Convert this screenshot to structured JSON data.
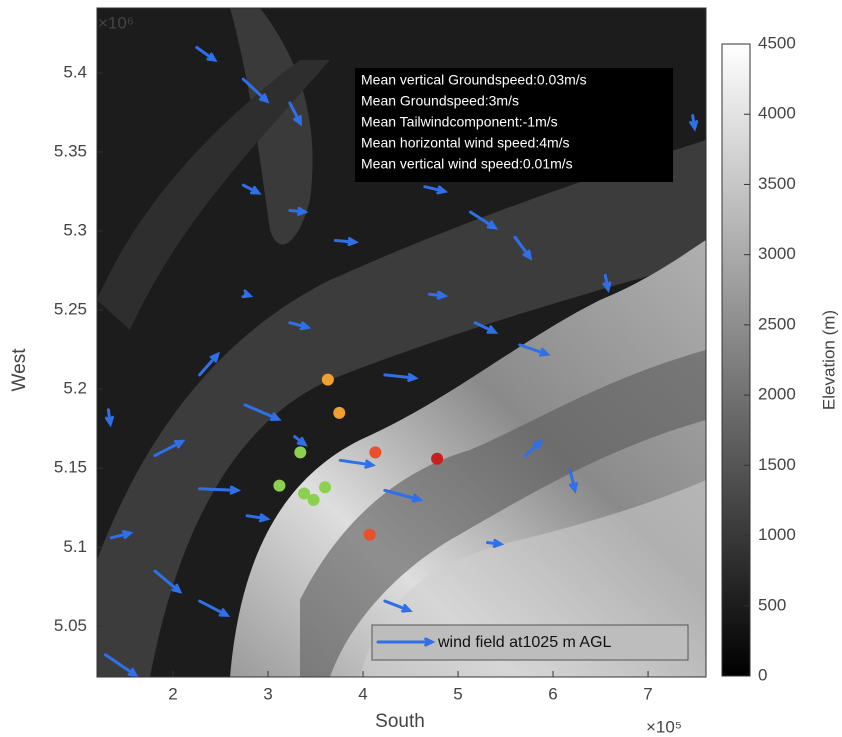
{
  "chart_data": {
    "type": "quiver",
    "xlabel": "South",
    "ylabel": "West",
    "x_multiplier": "×10⁵",
    "y_multiplier": "×10⁶",
    "xlim": [
      1.2,
      7.61
    ],
    "ylim": [
      5.018,
      5.441
    ],
    "xticks": [
      2,
      3,
      4,
      5,
      6,
      7
    ],
    "yticks": [
      5.05,
      5.1,
      5.15,
      5.2,
      5.25,
      5.3,
      5.35,
      5.4
    ],
    "annotations": [
      "Mean vertical Groundspeed:0.03m/s",
      "Mean Groundspeed:3m/s",
      "Mean Tailwindcomponent:-1m/s",
      "Mean horizontal wind speed:4m/s",
      "Mean vertical wind speed:0.01m/s"
    ],
    "legend_position": "lower right",
    "quiver": {
      "name": "wind field at1025 m AGL",
      "color": "#2f6fe8",
      "x": [
        2.25,
        2.74,
        3.23,
        2.74,
        3.23,
        3.71,
        2.76,
        3.23,
        2.28,
        1.81,
        1.32,
        2.76,
        3.28,
        3.76,
        4.23,
        4.23,
        2.28,
        2.78,
        1.81,
        2.28,
        1.29,
        1.35,
        4.65,
        5.13,
        5.6,
        4.7,
        5.18,
        5.65,
        5.71,
        6.18,
        5.31,
        4.23,
        6.55,
        7.47
      ],
      "y": [
        5.416,
        5.396,
        5.381,
        5.329,
        5.313,
        5.294,
        5.26,
        5.242,
        5.209,
        5.158,
        5.187,
        5.19,
        5.17,
        5.155,
        5.209,
        5.136,
        5.137,
        5.12,
        5.085,
        5.066,
        5.032,
        5.106,
        5.328,
        5.312,
        5.296,
        5.26,
        5.242,
        5.228,
        5.158,
        5.149,
        5.103,
        5.066,
        5.272,
        5.373
      ],
      "u": [
        0.19,
        0.25,
        0.11,
        0.16,
        0.16,
        0.21,
        0.05,
        0.19,
        0.19,
        0.29,
        0.02,
        0.35,
        0.11,
        0.34,
        0.32,
        0.37,
        0.4,
        0.21,
        0.26,
        0.29,
        0.32,
        0.2,
        0.21,
        0.26,
        0.16,
        0.16,
        0.21,
        0.29,
        0.16,
        0.05,
        0.14,
        0.26,
        0.03,
        0.02
      ],
      "v": [
        -0.008,
        -0.014,
        -0.013,
        -0.005,
        -0.001,
        -0.001,
        -0.001,
        -0.003,
        0.013,
        0.009,
        -0.009,
        -0.009,
        -0.005,
        -0.003,
        -0.002,
        -0.006,
        -0.001,
        -0.002,
        -0.013,
        -0.009,
        -0.013,
        0.003,
        -0.003,
        -0.01,
        -0.013,
        -0.001,
        -0.006,
        -0.006,
        0.009,
        -0.013,
        -0.001,
        -0.006,
        -0.009,
        -0.008
      ]
    },
    "series": [
      {
        "color": "#f0a030",
        "x": [
          3.63,
          3.75
        ],
        "y": [
          5.206,
          5.185
        ]
      },
      {
        "color": "#e8502a",
        "x": [
          4.13,
          4.07
        ],
        "y": [
          5.16,
          5.108
        ]
      },
      {
        "color": "#c81e1e",
        "x": [
          4.78
        ],
        "y": [
          5.156
        ]
      },
      {
        "color": "#8cd050",
        "x": [
          3.34,
          3.12,
          3.38,
          3.48,
          3.6
        ],
        "y": [
          5.16,
          5.139,
          5.134,
          5.13,
          5.138
        ]
      }
    ],
    "colorbar": {
      "label": "Elevation (m)",
      "lim": [
        0,
        4500
      ],
      "ticks": [
        0,
        500,
        1000,
        1500,
        2000,
        2500,
        3000,
        3500,
        4000,
        4500
      ]
    }
  }
}
